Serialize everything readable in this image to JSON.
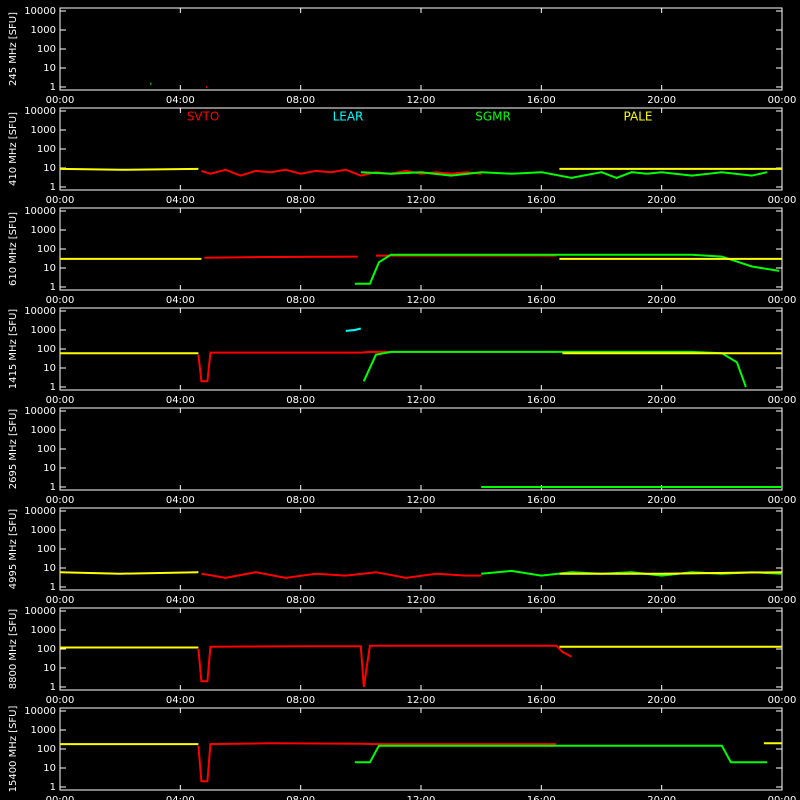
{
  "chart_data": [
    {
      "type": "line",
      "y_label": "245 MHz [SFU]",
      "xlim": [
        0,
        24
      ],
      "ylim": [
        1,
        10000
      ],
      "log_y": true,
      "xticks": [
        {
          "value": 0,
          "label": "00:00"
        },
        {
          "value": 4,
          "label": "04:00"
        },
        {
          "value": 8,
          "label": "08:00"
        },
        {
          "value": 12,
          "label": "12:00"
        },
        {
          "value": 16,
          "label": "16:00"
        },
        {
          "value": 20,
          "label": "20:00"
        },
        {
          "value": 24,
          "label": "00:00"
        }
      ],
      "yticks": [
        1,
        10,
        100,
        1000,
        10000
      ],
      "series": [
        {
          "color": "#00ff00",
          "x": [
            3.0
          ],
          "values": [
            1.5
          ]
        },
        {
          "color": "#ff0000",
          "x": [
            4.85
          ],
          "values": [
            1
          ]
        }
      ]
    },
    {
      "type": "line",
      "y_label": "410 MHz [SFU]",
      "xlim": [
        0,
        24
      ],
      "ylim": [
        1,
        10000
      ],
      "log_y": true,
      "legend": true,
      "xticks": [
        {
          "value": 0,
          "label": "00:00"
        },
        {
          "value": 4,
          "label": "04:00"
        },
        {
          "value": 8,
          "label": "08:00"
        },
        {
          "value": 12,
          "label": "12:00"
        },
        {
          "value": 16,
          "label": "16:00"
        },
        {
          "value": 20,
          "label": "20:00"
        },
        {
          "value": 24,
          "label": "00:00"
        }
      ],
      "yticks": [
        1,
        10,
        100,
        1000,
        10000
      ],
      "series": [
        {
          "name": "SVTO",
          "color": "#ff0000",
          "x": [
            4.7,
            5,
            5.5,
            6,
            6.5,
            7,
            7.5,
            8,
            8.5,
            9,
            9.5,
            10,
            10.5,
            11,
            11.5,
            12,
            12.5,
            13,
            13.5,
            14
          ],
          "values": [
            7,
            5,
            8,
            4,
            7,
            6,
            8,
            5,
            7,
            6,
            8,
            4,
            6,
            5,
            7,
            5,
            6,
            5,
            6,
            5
          ]
        },
        {
          "name": "LEAR",
          "color": "#00ffff",
          "x": [],
          "values": []
        },
        {
          "name": "SGMR",
          "color": "#00ff00",
          "x": [
            10,
            11,
            12,
            13,
            14,
            15,
            16,
            17,
            18,
            18.5,
            19,
            19.5,
            20,
            21,
            22,
            23,
            23.5
          ],
          "values": [
            6,
            5,
            6,
            4,
            6,
            5,
            6,
            3,
            6,
            3,
            6,
            5,
            6,
            4,
            6,
            4,
            6
          ]
        },
        {
          "name": "PALE",
          "color": "#ffff00",
          "x": [
            0,
            2,
            4.6,
            10,
            16.6,
            20,
            24
          ],
          "values": [
            9,
            8,
            9,
            null,
            9,
            9,
            9
          ]
        }
      ]
    },
    {
      "type": "line",
      "y_label": "610 MHz [SFU]",
      "xlim": [
        0,
        24
      ],
      "ylim": [
        1,
        10000
      ],
      "log_y": true,
      "xticks": [
        {
          "value": 0,
          "label": "00:00"
        },
        {
          "value": 4,
          "label": "04:00"
        },
        {
          "value": 8,
          "label": "08:00"
        },
        {
          "value": 12,
          "label": "12:00"
        },
        {
          "value": 16,
          "label": "16:00"
        },
        {
          "value": 20,
          "label": "20:00"
        },
        {
          "value": 24,
          "label": "00:00"
        }
      ],
      "yticks": [
        1,
        10,
        100,
        1000,
        10000
      ],
      "series": [
        {
          "color": "#ff0000",
          "x": [
            4.8,
            7,
            9.9,
            10,
            10.5,
            13,
            16.5
          ],
          "values": [
            35,
            38,
            40,
            null,
            45,
            45,
            45
          ]
        },
        {
          "color": "#00ff00",
          "x": [
            9.8,
            10.3,
            10.6,
            11,
            14,
            18,
            21,
            22,
            23,
            23.9
          ],
          "values": [
            1.5,
            1.5,
            20,
            50,
            50,
            50,
            50,
            40,
            12,
            7
          ]
        },
        {
          "color": "#ffff00",
          "x": [
            0,
            2,
            4.7,
            10,
            16.6,
            20,
            24
          ],
          "values": [
            30,
            30,
            30,
            null,
            30,
            30,
            30
          ]
        }
      ]
    },
    {
      "type": "line",
      "y_label": "1415 MHz [SFU]",
      "xlim": [
        0,
        24
      ],
      "ylim": [
        1,
        10000
      ],
      "log_y": true,
      "xticks": [
        {
          "value": 0,
          "label": "00:00"
        },
        {
          "value": 4,
          "label": "04:00"
        },
        {
          "value": 8,
          "label": "08:00"
        },
        {
          "value": 12,
          "label": "12:00"
        },
        {
          "value": 16,
          "label": "16:00"
        },
        {
          "value": 20,
          "label": "20:00"
        },
        {
          "value": 24,
          "label": "00:00"
        }
      ],
      "yticks": [
        1,
        10,
        100,
        1000,
        10000
      ],
      "series": [
        {
          "color": "#ff0000",
          "x": [
            4.6,
            4.7,
            4.9,
            5,
            7,
            10,
            10.3,
            13,
            16.5
          ],
          "values": [
            50,
            2,
            2,
            65,
            65,
            65,
            70,
            70,
            70
          ]
        },
        {
          "color": "#00ffff",
          "x": [
            9.5,
            9.8,
            10
          ],
          "values": [
            900,
            1000,
            1200
          ]
        },
        {
          "color": "#00ff00",
          "x": [
            10.1,
            10.5,
            11,
            14,
            18,
            21,
            22,
            22.5,
            22.8
          ],
          "values": [
            2,
            50,
            70,
            70,
            70,
            70,
            60,
            20,
            1
          ]
        },
        {
          "color": "#ffff00",
          "x": [
            0,
            2,
            4.6,
            10,
            16.7,
            20,
            24
          ],
          "values": [
            60,
            60,
            60,
            null,
            60,
            60,
            60
          ]
        }
      ]
    },
    {
      "type": "line",
      "y_label": "2695 MHz [SFU]",
      "xlim": [
        0,
        24
      ],
      "ylim": [
        1,
        10000
      ],
      "log_y": true,
      "xticks": [
        {
          "value": 0,
          "label": "00:00"
        },
        {
          "value": 4,
          "label": "04:00"
        },
        {
          "value": 8,
          "label": "08:00"
        },
        {
          "value": 12,
          "label": "12:00"
        },
        {
          "value": 16,
          "label": "16:00"
        },
        {
          "value": 20,
          "label": "20:00"
        },
        {
          "value": 24,
          "label": "00:00"
        }
      ],
      "yticks": [
        1,
        10,
        100,
        1000,
        10000
      ],
      "series": [
        {
          "color": "#00ff00",
          "x": [
            14,
            18,
            22,
            24
          ],
          "values": [
            1,
            1,
            1,
            1
          ]
        }
      ]
    },
    {
      "type": "line",
      "y_label": "4995 MHz [SFU]",
      "xlim": [
        0,
        24
      ],
      "ylim": [
        1,
        10000
      ],
      "log_y": true,
      "xticks": [
        {
          "value": 0,
          "label": "00:00"
        },
        {
          "value": 4,
          "label": "04:00"
        },
        {
          "value": 8,
          "label": "08:00"
        },
        {
          "value": 12,
          "label": "12:00"
        },
        {
          "value": 16,
          "label": "16:00"
        },
        {
          "value": 20,
          "label": "20:00"
        },
        {
          "value": 24,
          "label": "00:00"
        }
      ],
      "yticks": [
        1,
        10,
        100,
        1000,
        10000
      ],
      "series": [
        {
          "color": "#ff0000",
          "x": [
            4.7,
            5.5,
            6.5,
            7.5,
            8.5,
            9.5,
            10.5,
            11.5,
            12.5,
            13.5,
            14
          ],
          "values": [
            5,
            3,
            6,
            3,
            5,
            4,
            6,
            3,
            5,
            4,
            4
          ]
        },
        {
          "color": "#00ff00",
          "x": [
            14,
            15,
            16,
            17,
            18,
            19,
            20,
            21,
            22,
            23,
            24
          ],
          "values": [
            5,
            7,
            4,
            6,
            5,
            6,
            4,
            6,
            5,
            6,
            5
          ]
        },
        {
          "color": "#ffff00",
          "x": [
            0,
            2,
            4.6,
            10,
            16.6,
            20,
            24
          ],
          "values": [
            6,
            5,
            6,
            null,
            5,
            5,
            6
          ]
        }
      ]
    },
    {
      "type": "line",
      "y_label": "8800 MHz [SFU]",
      "xlim": [
        0,
        24
      ],
      "ylim": [
        1,
        10000
      ],
      "log_y": true,
      "xticks": [
        {
          "value": 0,
          "label": "00:00"
        },
        {
          "value": 4,
          "label": "04:00"
        },
        {
          "value": 8,
          "label": "08:00"
        },
        {
          "value": 12,
          "label": "12:00"
        },
        {
          "value": 16,
          "label": "16:00"
        },
        {
          "value": 20,
          "label": "20:00"
        },
        {
          "value": 24,
          "label": "00:00"
        }
      ],
      "yticks": [
        1,
        10,
        100,
        1000,
        10000
      ],
      "series": [
        {
          "color": "#ff0000",
          "x": [
            4.6,
            4.7,
            4.9,
            5,
            8,
            10,
            10.1,
            10.3,
            13,
            16.5,
            16.7,
            17
          ],
          "values": [
            100,
            2,
            2,
            130,
            140,
            140,
            1,
            150,
            150,
            150,
            70,
            40
          ]
        },
        {
          "color": "#ffff00",
          "x": [
            0,
            2,
            4.6,
            10,
            16.6,
            20,
            24
          ],
          "values": [
            120,
            120,
            120,
            null,
            130,
            130,
            130
          ]
        }
      ]
    },
    {
      "type": "line",
      "y_label": "15400 MHz [SFU]",
      "xlim": [
        0,
        24
      ],
      "ylim": [
        1,
        10000
      ],
      "log_y": true,
      "xticks": [
        {
          "value": 0,
          "label": "00:00"
        },
        {
          "value": 4,
          "label": "04:00"
        },
        {
          "value": 8,
          "label": "08:00"
        },
        {
          "value": 12,
          "label": "12:00"
        },
        {
          "value": 16,
          "label": "16:00"
        },
        {
          "value": 20,
          "label": "20:00"
        },
        {
          "value": 24,
          "label": "00:00"
        }
      ],
      "yticks": [
        1,
        10,
        100,
        1000,
        10000
      ],
      "series": [
        {
          "color": "#ff0000",
          "x": [
            4.6,
            4.7,
            4.9,
            5,
            7,
            10,
            10.5,
            13,
            16.5
          ],
          "values": [
            150,
            2,
            2,
            180,
            200,
            190,
            180,
            180,
            180
          ]
        },
        {
          "color": "#00ff00",
          "x": [
            9.8,
            10.3,
            10.6,
            11,
            14,
            16.5,
            16.7,
            19,
            22,
            22.3,
            23.5
          ],
          "values": [
            20,
            20,
            150,
            150,
            150,
            150,
            150,
            150,
            150,
            20,
            20
          ]
        },
        {
          "color": "#ffff00",
          "x": [
            0,
            2,
            4.6,
            10,
            23.4,
            24
          ],
          "values": [
            180,
            180,
            180,
            null,
            200,
            200
          ]
        }
      ]
    }
  ]
}
